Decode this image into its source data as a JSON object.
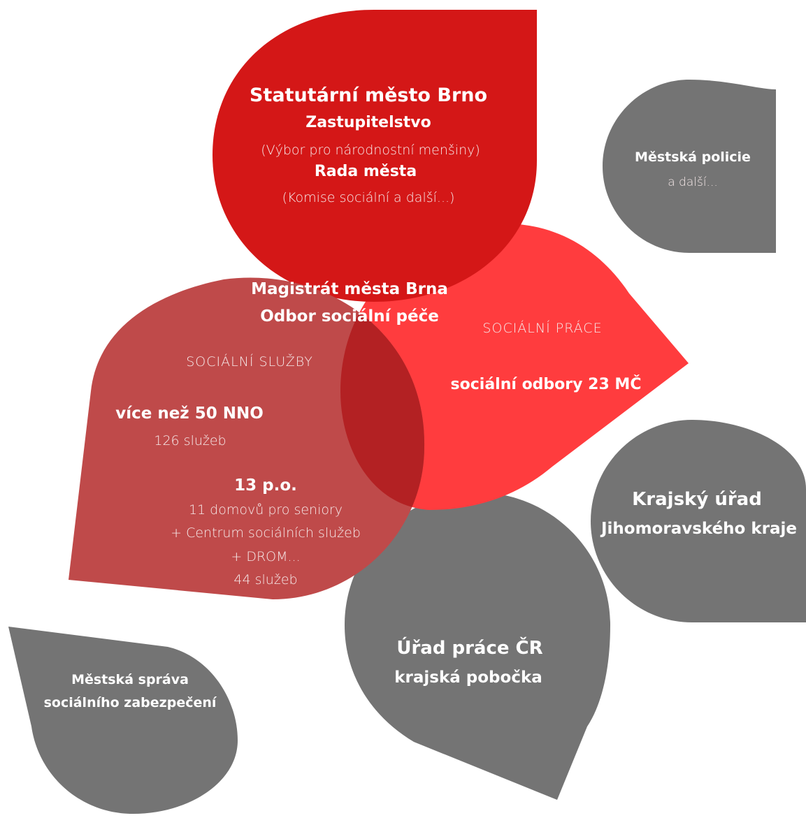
{
  "colors": {
    "city_red": "#d41717",
    "services_red": "#bf4a4a",
    "work_red": "#ff3c3e",
    "overlap_red": "#b32123",
    "gray": "#747474",
    "text": "#ffffff"
  },
  "city": {
    "title": "Statutární město Brno",
    "council": "Zastupitelstvo",
    "council_note": "(Výbor pro národnostní menšiny)",
    "board": "Rada města",
    "board_note": "(Komise sociální a další...)"
  },
  "magistrate": {
    "line1": "Magistrát města Brna",
    "line2": "Odbor sociální péče"
  },
  "social_services": {
    "heading": "SOCIÁLNÍ SLUŽBY",
    "nno_label": "více než 50 NNO",
    "nno_services": "126 služeb",
    "po_label": "13 p.o.",
    "po_line1": "11 domovů pro seniory",
    "po_line2": "+ Centrum sociálních služeb",
    "po_line3": "+ DROM...",
    "po_services": "44 služeb"
  },
  "social_work": {
    "heading": "SOCIÁLNÍ PRÁCE",
    "departments": "sociální odbory 23 MČ"
  },
  "police": {
    "title": "Městská policie",
    "note": "a další..."
  },
  "region": {
    "line1": "Krajský úřad",
    "line2": "Jihomoravského kraje"
  },
  "labour_office": {
    "line1": "Úřad práce ČR",
    "line2": "krajská pobočka"
  },
  "social_security": {
    "line1": "Městská správa",
    "line2": "sociálního zabezpečení"
  }
}
